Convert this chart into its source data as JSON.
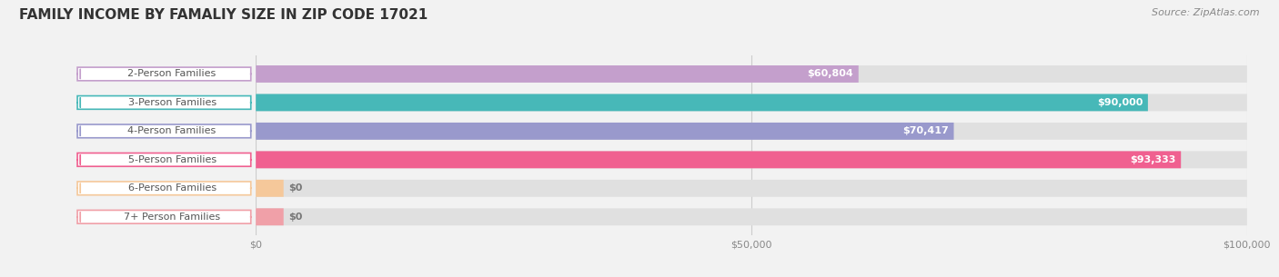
{
  "title": "FAMILY INCOME BY FAMALIY SIZE IN ZIP CODE 17021",
  "source": "Source: ZipAtlas.com",
  "categories": [
    "2-Person Families",
    "3-Person Families",
    "4-Person Families",
    "5-Person Families",
    "6-Person Families",
    "7+ Person Families"
  ],
  "values": [
    60804,
    90000,
    70417,
    93333,
    0,
    0
  ],
  "bar_colors": [
    "#c49fcc",
    "#47b8b8",
    "#9999cc",
    "#f06090",
    "#f5c89a",
    "#f0a0a8"
  ],
  "value_labels": [
    "$60,804",
    "$90,000",
    "$70,417",
    "$93,333",
    "$0",
    "$0"
  ],
  "xlim": [
    0,
    100000
  ],
  "xticks": [
    0,
    50000,
    100000
  ],
  "xticklabels": [
    "$0",
    "$50,000",
    "$100,000"
  ],
  "background_color": "#f2f2f2",
  "bar_bg_color": "#e0e0e0",
  "title_fontsize": 11,
  "source_fontsize": 8,
  "label_fontsize": 8,
  "value_fontsize": 8
}
